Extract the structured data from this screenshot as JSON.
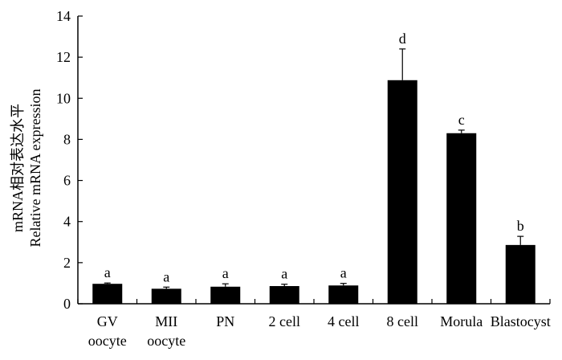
{
  "chart_data": {
    "type": "bar",
    "ylabel_lines": [
      "mRNA相对表达水平",
      "Relative mRNA expression"
    ],
    "xlabel": "",
    "ylim": [
      0,
      14
    ],
    "yticks": [
      0,
      2,
      4,
      6,
      8,
      10,
      12,
      14
    ],
    "grid": false,
    "categories": [
      [
        "GV",
        "oocyte"
      ],
      [
        "MII",
        "oocyte"
      ],
      [
        "PN"
      ],
      [
        "2 cell"
      ],
      [
        "4 cell"
      ],
      [
        "8 cell"
      ],
      [
        "Morula"
      ],
      [
        "Blastocyst"
      ]
    ],
    "values": [
      0.97,
      0.73,
      0.83,
      0.86,
      0.89,
      10.88,
      8.3,
      2.86
    ],
    "errors": [
      0.04,
      0.08,
      0.14,
      0.09,
      0.1,
      1.52,
      0.15,
      0.42
    ],
    "significance_letters": [
      "a",
      "a",
      "a",
      "a",
      "a",
      "d",
      "c",
      "b"
    ],
    "bar_color": "#000000"
  }
}
